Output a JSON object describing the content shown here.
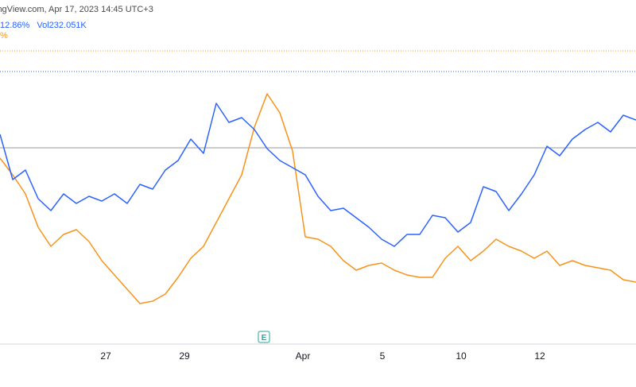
{
  "header": {
    "source_line": "ingView.com, Apr 17, 2023 14:45 UTC+3",
    "change": "12.86%",
    "vol_label": "Vol",
    "vol_value": "232.051K",
    "second_series_change": "%"
  },
  "event_marker": {
    "label": "E"
  },
  "colors": {
    "series_blue": "#2962ff",
    "series_orange": "#f7931a",
    "axis_line": "#d1d4dc",
    "baseline": "#9598a1",
    "dotted_blue": "#2962ff",
    "dotted_orange": "#f7931a",
    "event_badge": "#26a69a"
  },
  "chart_data": {
    "type": "line",
    "title": "",
    "xlabel": "",
    "ylabel": "",
    "x_axis_ticks": [
      "27",
      "29",
      "Apr",
      "5",
      "10",
      "12"
    ],
    "ylim": [
      0,
      100
    ],
    "grid": false,
    "x": [
      0,
      2,
      4,
      6,
      8,
      10,
      12,
      14,
      16,
      18,
      20,
      22,
      24,
      26,
      28,
      30,
      32,
      34,
      36,
      38,
      40,
      42,
      44,
      46,
      48,
      50,
      52,
      54,
      56,
      58,
      60,
      62,
      64,
      66,
      68,
      70,
      72,
      74,
      76,
      78,
      80,
      82,
      84,
      86,
      88,
      90,
      92,
      94,
      96,
      98,
      100
    ],
    "series": [
      {
        "values": [
          77,
          58,
          62,
          50,
          45,
          52,
          48,
          51,
          49,
          52,
          48,
          56,
          54,
          62,
          66,
          75,
          69,
          90,
          82,
          84,
          79,
          71,
          66,
          63,
          60,
          51,
          45,
          46,
          42,
          38,
          33,
          30,
          35,
          35,
          43,
          42,
          36,
          40,
          55,
          53,
          45,
          52,
          60,
          72,
          68,
          75,
          79,
          82,
          78,
          85,
          83
        ]
      },
      {
        "values": [
          67,
          60,
          52,
          38,
          30,
          35,
          37,
          32,
          24,
          18,
          12,
          6,
          7,
          10,
          17,
          25,
          30,
          40,
          50,
          60,
          80,
          94,
          86,
          70,
          34,
          33,
          30,
          24,
          20,
          22,
          23,
          20,
          18,
          17,
          17,
          25,
          30,
          24,
          28,
          33,
          30,
          28,
          25,
          28,
          22,
          24,
          22,
          21,
          20,
          16,
          15
        ]
      }
    ]
  }
}
